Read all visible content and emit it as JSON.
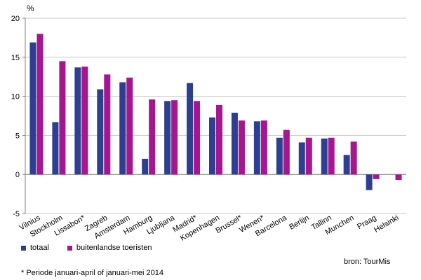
{
  "chart_data": {
    "type": "bar",
    "unit_label": "%",
    "categories": [
      "Vilnius",
      "Stockholm",
      "Lissabon*",
      "Zagreb",
      "Amsterdam",
      "Hamburg",
      "Ljubljana",
      "Madrid*",
      "Kopenhagen",
      "Brussel*",
      "Wenen*",
      "Barcelona",
      "Berlijn",
      "Tallinn",
      "Munchen",
      "Praag",
      "Helsinki"
    ],
    "series": [
      {
        "name": "totaal",
        "color": "#2E3F91",
        "values": [
          16.9,
          6.7,
          13.7,
          10.9,
          11.8,
          2.0,
          9.4,
          11.7,
          7.3,
          7.9,
          6.8,
          4.7,
          4.1,
          4.6,
          2.5,
          -2.0,
          null
        ]
      },
      {
        "name": "buitenlandse toeristen",
        "color": "#A5168F",
        "values": [
          18.0,
          14.5,
          13.8,
          12.8,
          12.4,
          9.6,
          9.5,
          9.4,
          8.9,
          6.9,
          6.9,
          5.7,
          4.7,
          4.7,
          4.2,
          -0.6,
          -0.7
        ]
      }
    ],
    "ylim": [
      -5,
      20
    ],
    "yticks": [
      -5,
      0,
      5,
      10,
      15,
      20
    ],
    "grid": true,
    "legend_position": "bottom-left"
  },
  "legend": {
    "series1": "totaal",
    "series2": "buitenlandse toeristen"
  },
  "source": "bron: TourMis",
  "footnote": "* Periode januari-april of januari-mei 2014"
}
